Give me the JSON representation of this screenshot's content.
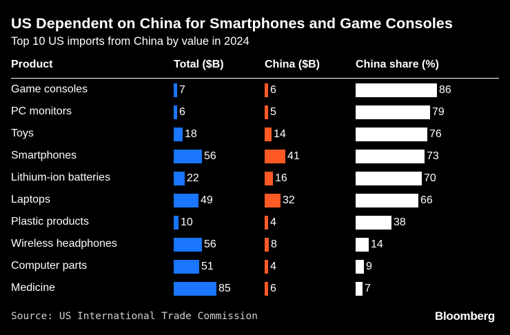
{
  "title": "US Dependent on China for Smartphones and Game Consoles",
  "subtitle": "Top 10 US imports from China by value in 2024",
  "headers": {
    "product": "Product",
    "total": "Total ($B)",
    "china": "China ($B)",
    "share": "China share (%)"
  },
  "source": "Source: US International Trade Commission",
  "brand": "Bloomberg",
  "colors": {
    "background": "#000000",
    "total_bar": "#1a75ff",
    "china_bar": "#ff5a26",
    "share_bar": "#ffffff"
  },
  "chart_data": {
    "type": "table",
    "title": "US Dependent on China for Smartphones and Game Consoles",
    "subtitle": "Top 10 US imports from China by value in 2024",
    "columns": [
      "Product",
      "Total ($B)",
      "China ($B)",
      "China share (%)"
    ],
    "categories": [
      "Game consoles",
      "PC monitors",
      "Toys",
      "Smartphones",
      "Lithium-ion batteries",
      "Laptops",
      "Plastic products",
      "Wireless headphones",
      "Computer parts",
      "Medicine"
    ],
    "series": [
      {
        "name": "Total ($B)",
        "values": [
          7,
          6,
          18,
          56,
          22,
          49,
          10,
          56,
          51,
          85
        ]
      },
      {
        "name": "China ($B)",
        "values": [
          6,
          5,
          14,
          41,
          16,
          32,
          4,
          8,
          4,
          6
        ]
      },
      {
        "name": "China share (%)",
        "values": [
          86,
          79,
          76,
          73,
          70,
          66,
          38,
          14,
          9,
          7
        ]
      }
    ]
  }
}
